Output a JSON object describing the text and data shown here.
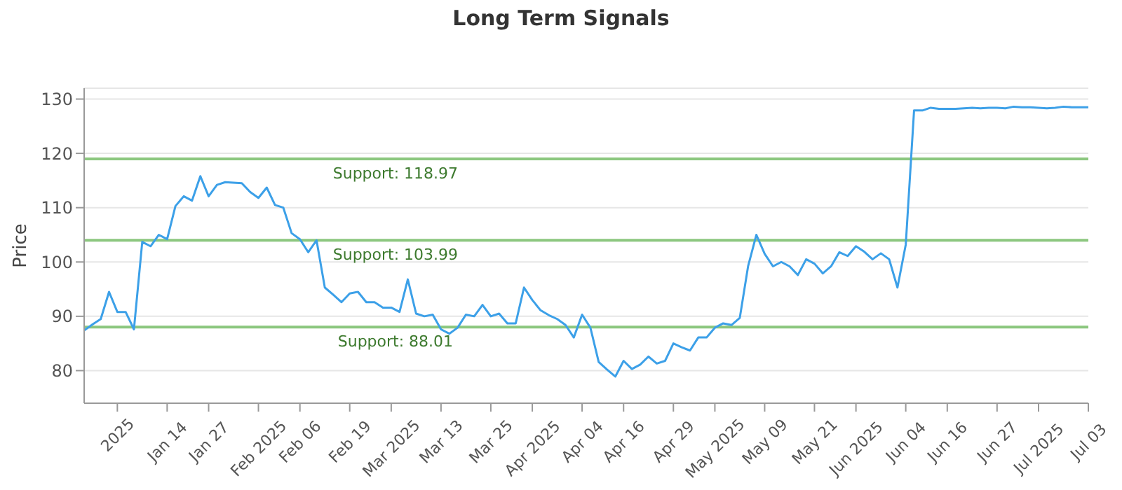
{
  "chart_data": {
    "type": "line",
    "title": "Long Term Signals",
    "ylabel": "Price",
    "categories": [
      null,
      null,
      null,
      null,
      "2025",
      null,
      null,
      null,
      null,
      null,
      "Jan 14",
      null,
      null,
      null,
      null,
      "Jan 27",
      null,
      null,
      null,
      null,
      null,
      "Feb 2025",
      null,
      null,
      null,
      null,
      "Feb 06",
      null,
      null,
      null,
      null,
      null,
      "Feb 19",
      null,
      null,
      null,
      null,
      "Mar 2025",
      null,
      null,
      null,
      null,
      null,
      "Mar 13",
      null,
      null,
      null,
      null,
      null,
      "Mar 25",
      null,
      null,
      null,
      null,
      "Apr 2025",
      null,
      null,
      null,
      null,
      null,
      "Apr 04",
      null,
      null,
      null,
      null,
      "Apr 16",
      null,
      null,
      null,
      null,
      null,
      "Apr 29",
      null,
      null,
      null,
      null,
      "May 2025",
      null,
      null,
      null,
      null,
      null,
      "May 09",
      null,
      null,
      null,
      null,
      null,
      "May 21",
      null,
      null,
      null,
      null,
      "Jun 2025",
      null,
      null,
      null,
      null,
      null,
      "Jun 04",
      null,
      null,
      null,
      null,
      "Jun 16",
      null,
      null,
      null,
      null,
      null,
      "Jun 27",
      null,
      null,
      null,
      null,
      "Jul 2025",
      null,
      null,
      null,
      null,
      null,
      "Jul 03"
    ],
    "series": [
      {
        "color": "#3ca0e8",
        "values": [
          87.4,
          88.5,
          89.5,
          94.5,
          90.8,
          90.8,
          87.6,
          103.7,
          102.9,
          105,
          104.2,
          110.3,
          112.1,
          111.3,
          115.8,
          112.1,
          114.2,
          114.7,
          114.6,
          114.5,
          112.9,
          111.8,
          113.7,
          110.5,
          110,
          105.3,
          104.2,
          101.8,
          104,
          95.3,
          94,
          92.6,
          94.2,
          94.5,
          92.6,
          92.6,
          91.6,
          91.6,
          90.8,
          96.8,
          90.5,
          90,
          90.3,
          87.6,
          86.8,
          87.9,
          90.3,
          90,
          92.1,
          90,
          90.5,
          88.7,
          88.7,
          95.3,
          93,
          91.1,
          90.2,
          89.5,
          88.4,
          86.1,
          90.3,
          87.9,
          81.6,
          80.2,
          78.9,
          81.8,
          80.3,
          81.1,
          82.6,
          81.3,
          81.8,
          85,
          84.3,
          83.7,
          86.1,
          86.1,
          87.9,
          88.7,
          88.4,
          89.7,
          99.2,
          105,
          101.5,
          99.2,
          100,
          99.2,
          97.6,
          100.5,
          99.7,
          97.9,
          99.2,
          101.8,
          101.1,
          102.9,
          101.9,
          100.5,
          101.6,
          100.5,
          95.3,
          103.2,
          127.9,
          127.9,
          128.4,
          128.2,
          128.2,
          128.2,
          128.3,
          128.4,
          128.3,
          128.4,
          128.4,
          128.3,
          128.6,
          128.5,
          128.5,
          128.4,
          128.3,
          128.4,
          128.6,
          128.5,
          128.5,
          128.5
        ]
      }
    ],
    "ylim": [
      74,
      132
    ],
    "yticks": [
      80,
      90,
      100,
      110,
      120,
      130
    ],
    "grid": "y",
    "marker": "none",
    "line_style": "solid",
    "ref_lines": [
      {
        "axis": "y",
        "value": 118.97,
        "label": "Support: 118.97",
        "color": "#8cc77f"
      },
      {
        "axis": "y",
        "value": 103.99,
        "label": "Support: 103.99",
        "color": "#8cc77f"
      },
      {
        "axis": "y",
        "value": 88.01,
        "label": "Support: 88.01",
        "color": "#8cc77f"
      }
    ]
  }
}
